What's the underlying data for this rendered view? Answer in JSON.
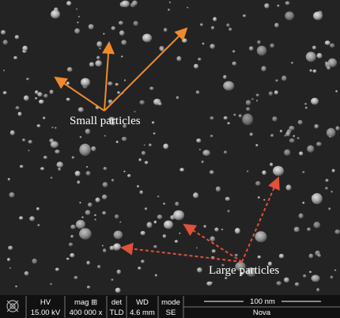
{
  "annotations": {
    "small": "Small particles",
    "large": "Large particles"
  },
  "info_bar": {
    "columns": [
      {
        "label": "HV",
        "value": "15.00 kV"
      },
      {
        "label": "mag ⊞",
        "value": "400 000 x"
      },
      {
        "label": "det",
        "value": "TLD"
      },
      {
        "label": "WD",
        "value": "4.6 mm"
      },
      {
        "label": "mode",
        "value": "SE"
      }
    ],
    "scale_bar": "100 nm",
    "instrument": "Nova"
  }
}
